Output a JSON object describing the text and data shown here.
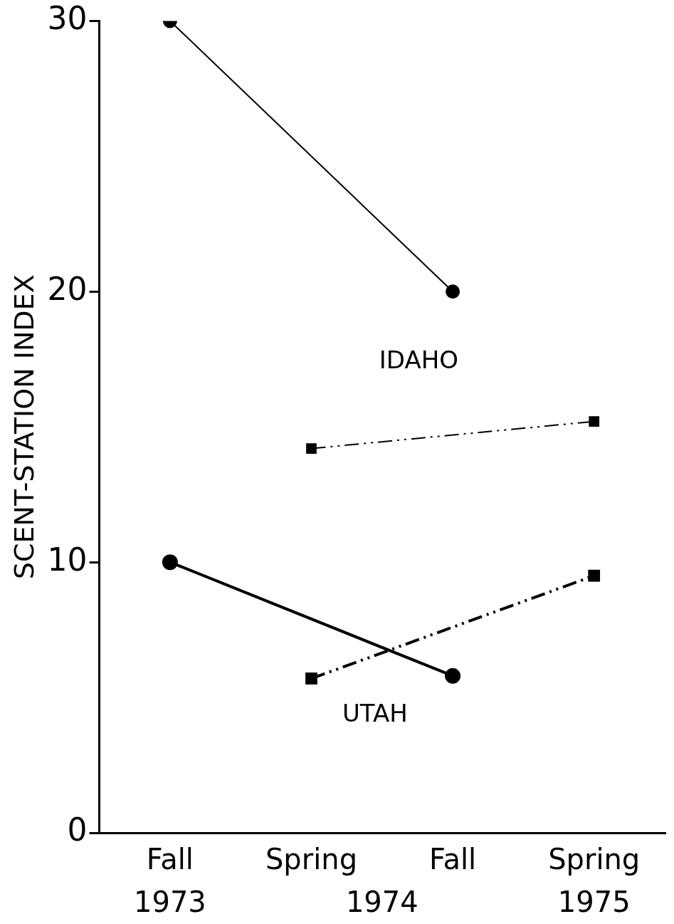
{
  "chart_data": {
    "type": "line",
    "ylabel": "SCENT-STATION INDEX",
    "categories": [
      "Fall",
      "Spring",
      "Fall",
      "Spring"
    ],
    "ylim": [
      0,
      30
    ],
    "yticks": [
      0,
      10,
      20,
      30
    ],
    "grid": false,
    "legend": false,
    "series": [
      {
        "color": "#000000",
        "values": [
          30,
          null,
          20,
          null
        ],
        "marker": "circle",
        "line_style": "solid"
      },
      {
        "color": "#000000",
        "values": [
          null,
          14.2,
          null,
          15.2
        ],
        "marker": "square",
        "line_style": "dashed"
      },
      {
        "color": "#000000",
        "values": [
          10,
          null,
          5.8,
          null
        ],
        "marker": "circle",
        "line_style": "solid"
      },
      {
        "color": "#000000",
        "values": [
          null,
          5.7,
          null,
          9.5
        ],
        "marker": "square",
        "line_style": "dashed"
      }
    ],
    "annotations": [
      "1973",
      "1974",
      "1975",
      "IDAHO",
      "UTAH"
    ]
  }
}
